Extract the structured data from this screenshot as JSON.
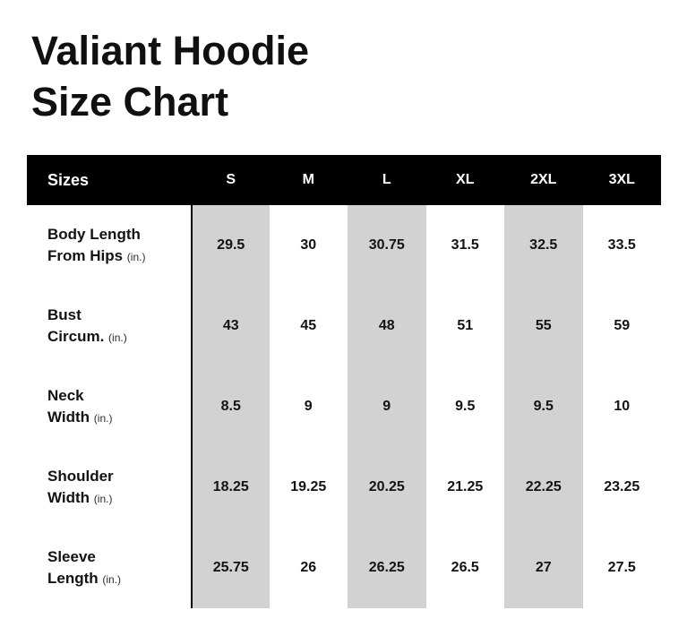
{
  "title": {
    "line1": "Valiant Hoodie",
    "line2": "Size Chart"
  },
  "colors": {
    "header_bg": "#000000",
    "header_text": "#ffffff",
    "stripe": "#d2d2d2",
    "page_bg": "#ffffff",
    "text": "#101010"
  },
  "labels": {
    "rows": [
      {
        "line1": "Body Length",
        "line2": "From Hips",
        "unit": "(in.)"
      },
      {
        "line1": "Bust",
        "line2": "Circum.",
        "unit": "(in.)"
      },
      {
        "line1": "Neck",
        "line2": "Width",
        "unit": "(in.)"
      },
      {
        "line1": "Shoulder",
        "line2": "Width",
        "unit": "(in.)"
      },
      {
        "line1": "Sleeve",
        "line2": "Length",
        "unit": "(in.)"
      }
    ]
  },
  "chart_data": {
    "type": "table",
    "title": "Valiant Hoodie Size Chart",
    "columns": [
      "Sizes",
      "S",
      "M",
      "L",
      "XL",
      "2XL",
      "3XL"
    ],
    "rows": [
      {
        "label": "Body Length From Hips (in.)",
        "values": [
          29.5,
          30,
          30.75,
          31.5,
          32.5,
          33.5
        ]
      },
      {
        "label": "Bust Circum. (in.)",
        "values": [
          43,
          45,
          48,
          51,
          55,
          59
        ]
      },
      {
        "label": "Neck Width (in.)",
        "values": [
          8.5,
          9,
          9,
          9.5,
          9.5,
          10
        ]
      },
      {
        "label": "Shoulder Width (in.)",
        "values": [
          18.25,
          19.25,
          20.25,
          21.25,
          22.25,
          23.25
        ]
      },
      {
        "label": "Sleeve Length (in.)",
        "values": [
          25.75,
          26,
          26.25,
          26.5,
          27,
          27.5
        ]
      }
    ],
    "highlighted_columns": [
      "S",
      "L",
      "2XL"
    ],
    "units": "inches",
    "layout": {
      "header_style": "black-bar",
      "striped_column_color": "#d2d2d2"
    }
  }
}
